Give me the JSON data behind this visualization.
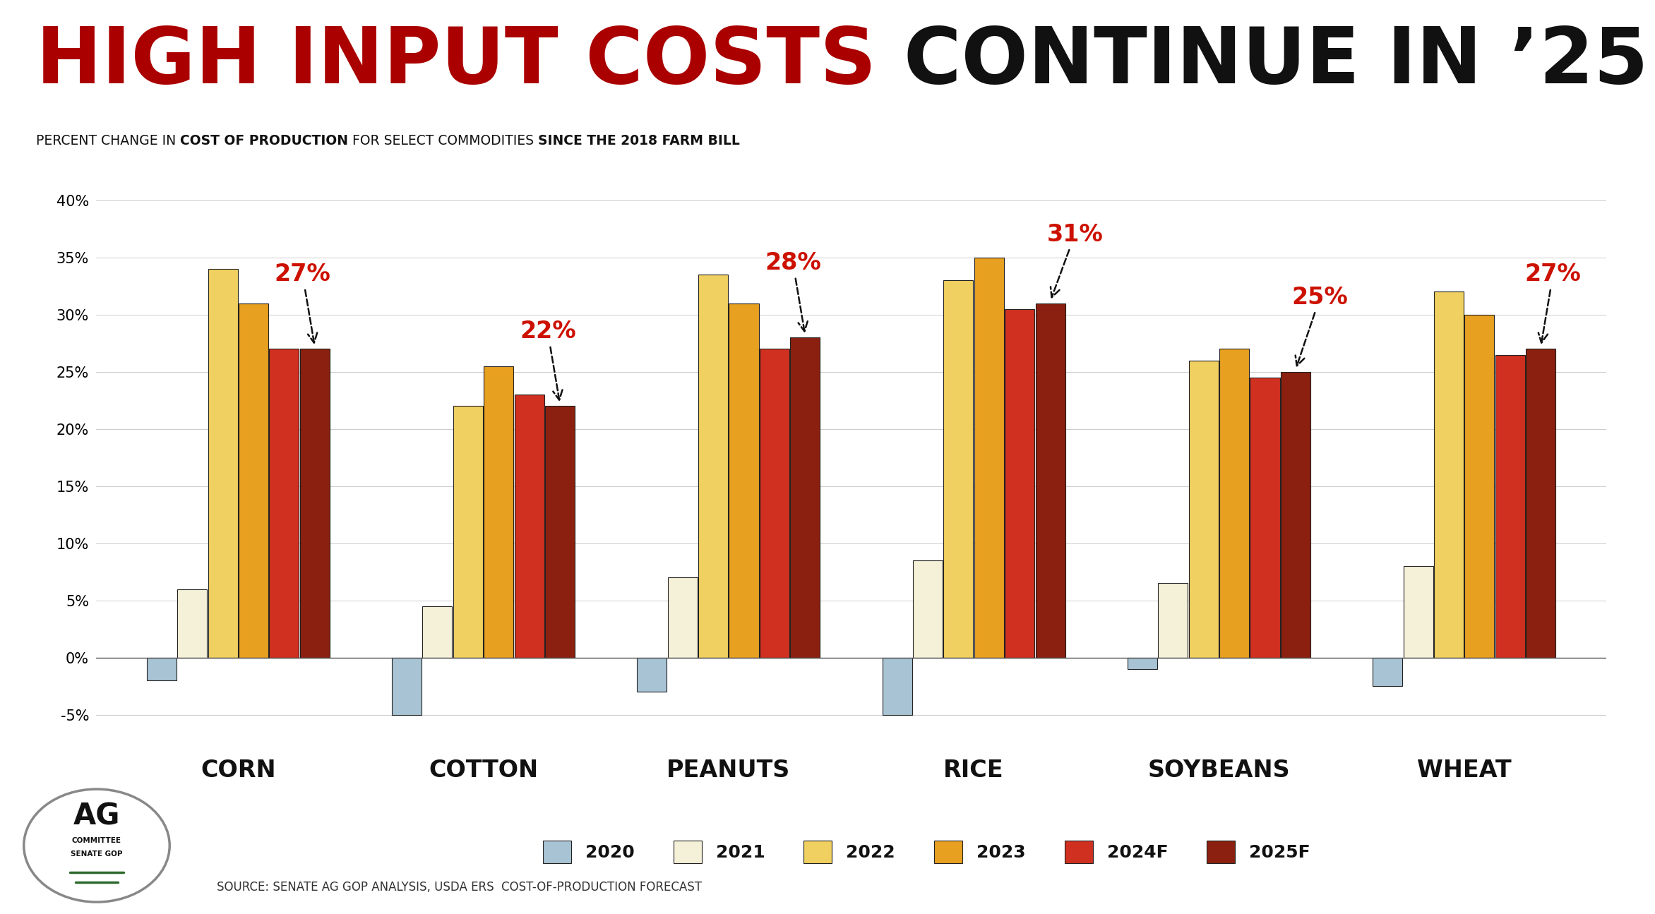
{
  "title_red": "HIGH INPUT COSTS ",
  "title_black": "CONTINUE IN ’25",
  "subtitle_parts": [
    {
      "text": "PERCENT CHANGE IN ",
      "bold": false
    },
    {
      "text": "COST OF PRODUCTION",
      "bold": true
    },
    {
      "text": " FOR SELECT COMMODITIES ",
      "bold": false
    },
    {
      "text": "SINCE THE 2018 FARM BILL",
      "bold": true
    }
  ],
  "source": "SOURCE: SENATE AG GOP ANALYSIS, USDA ERS  COST-OF-PRODUCTION FORECAST",
  "categories": [
    "CORN",
    "COTTON",
    "PEANUTS",
    "RICE",
    "SOYBEANS",
    "WHEAT"
  ],
  "years": [
    "2020",
    "2021",
    "2022",
    "2023",
    "2024F",
    "2025F"
  ],
  "colors": [
    "#a8c4d4",
    "#f5f0d8",
    "#f0d060",
    "#e8a020",
    "#d03020",
    "#8b2010"
  ],
  "bar_edge_color": "#222222",
  "data": {
    "CORN": [
      -2.0,
      6.0,
      34.0,
      31.0,
      27.0,
      27.0
    ],
    "COTTON": [
      -5.0,
      4.5,
      22.0,
      25.5,
      23.0,
      22.0
    ],
    "PEANUTS": [
      -3.0,
      7.0,
      33.5,
      31.0,
      27.0,
      28.0
    ],
    "RICE": [
      -5.0,
      8.5,
      33.0,
      35.0,
      30.5,
      31.0
    ],
    "SOYBEANS": [
      -1.0,
      6.5,
      26.0,
      27.0,
      24.5,
      25.0
    ],
    "WHEAT": [
      -2.5,
      8.0,
      32.0,
      30.0,
      26.5,
      27.0
    ]
  },
  "annotations": {
    "CORN": {
      "value": "27%"
    },
    "COTTON": {
      "value": "22%"
    },
    "PEANUTS": {
      "value": "28%"
    },
    "RICE": {
      "value": "31%"
    },
    "SOYBEANS": {
      "value": "25%"
    },
    "WHEAT": {
      "value": "27%"
    }
  },
  "ylim": [
    -7.5,
    43
  ],
  "yticks": [
    -5,
    0,
    5,
    10,
    15,
    20,
    25,
    30,
    35,
    40
  ],
  "annotation_color": "#cc1100",
  "background_color": "#ffffff",
  "title_red_color": "#aa0000",
  "title_black_color": "#111111",
  "category_label_fontsize": 24,
  "legend_fontsize": 18,
  "axis_tick_fontsize": 15,
  "title_fontsize": 80,
  "subtitle_fontsize": 13.5
}
